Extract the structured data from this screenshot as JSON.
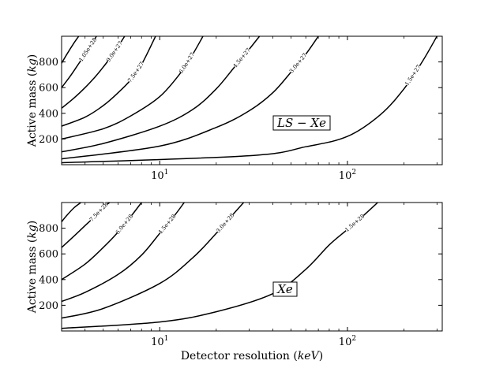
{
  "chart_data": [
    {
      "type": "line",
      "chart_kind": "contour",
      "title": "",
      "xlabel": "",
      "ylabel": "Active mass (kg)",
      "xscale": "log",
      "xlim": [
        3,
        320
      ],
      "ylim": [
        0,
        1000
      ],
      "xticks": [
        10,
        100
      ],
      "xtick_labels": [
        "10",
        "100"
      ],
      "yticks": [
        200,
        400,
        600,
        800
      ],
      "ytick_labels": [
        "200",
        "400",
        "600",
        "800"
      ],
      "annotation": "LS − Xe",
      "grid": false,
      "series": [
        {
          "name": "1.5e+27",
          "x": [
            3,
            30,
            60,
            100,
            150,
            200,
            250,
            300
          ],
          "y": [
            15,
            70,
            140,
            220,
            390,
            590,
            800,
            1000
          ]
        },
        {
          "name": "3.0e+27",
          "x": [
            3,
            10,
            20,
            30,
            40,
            50,
            60,
            70
          ],
          "y": [
            45,
            145,
            290,
            420,
            560,
            720,
            860,
            1000
          ]
        },
        {
          "name": "4.5e+27",
          "x": [
            3,
            5,
            10,
            15,
            20,
            25,
            30,
            34
          ],
          "y": [
            100,
            165,
            300,
            430,
            590,
            760,
            900,
            1000
          ]
        },
        {
          "name": "6.0e+27",
          "x": [
            3,
            5,
            7,
            10,
            13,
            15,
            17
          ],
          "y": [
            200,
            280,
            380,
            530,
            720,
            860,
            1000
          ]
        },
        {
          "name": "7.5e+27",
          "x": [
            3,
            4,
            5,
            6,
            7,
            8,
            9.5
          ],
          "y": [
            300,
            370,
            460,
            560,
            660,
            780,
            1000
          ]
        },
        {
          "name": "9.0e+27",
          "x": [
            3,
            3.5,
            4,
            4.5,
            5,
            5.5,
            6,
            6.5
          ],
          "y": [
            440,
            520,
            600,
            680,
            760,
            840,
            920,
            1000
          ]
        },
        {
          "name": "1.05e+28",
          "x": [
            3,
            3.3,
            3.6,
            4,
            4.3,
            4.6
          ],
          "y": [
            600,
            680,
            760,
            860,
            930,
            1000
          ]
        },
        {
          "name": "",
          "x": [
            3,
            3.2,
            3.5,
            3.7
          ],
          "y": [
            790,
            860,
            950,
            1000
          ]
        }
      ]
    },
    {
      "type": "line",
      "chart_kind": "contour",
      "title": "",
      "xlabel": "Detector resolution (keV)",
      "ylabel": "Active mass (kg)",
      "xscale": "log",
      "xlim": [
        3,
        320
      ],
      "ylim": [
        0,
        1000
      ],
      "xticks": [
        10,
        100
      ],
      "xtick_labels": [
        "10",
        "100"
      ],
      "yticks": [
        200,
        400,
        600,
        800
      ],
      "ytick_labels": [
        "200",
        "400",
        "600",
        "800"
      ],
      "annotation": "Xe",
      "grid": false,
      "series": [
        {
          "name": "1.5e+28",
          "x": [
            3,
            10,
            20,
            40,
            60,
            80,
            100,
            120,
            145
          ],
          "y": [
            20,
            70,
            150,
            290,
            480,
            670,
            790,
            890,
            1000
          ]
        },
        {
          "name": "3.0e+28",
          "x": [
            3,
            5,
            10,
            15,
            20,
            25,
            28
          ],
          "y": [
            100,
            175,
            370,
            570,
            760,
            920,
            1000
          ]
        },
        {
          "name": "4.5e+28",
          "x": [
            3,
            4,
            6,
            8,
            10,
            12,
            13.5
          ],
          "y": [
            230,
            300,
            440,
            590,
            760,
            900,
            1000
          ]
        },
        {
          "name": "6.0e+28",
          "x": [
            3,
            4,
            5,
            6,
            7,
            8
          ],
          "y": [
            400,
            520,
            650,
            770,
            890,
            1000
          ]
        },
        {
          "name": "7.5e+28",
          "x": [
            3,
            3.5,
            4,
            4.5,
            5,
            5.4
          ],
          "y": [
            650,
            740,
            820,
            890,
            960,
            1000
          ]
        },
        {
          "name": "",
          "x": [
            3,
            3.2,
            3.5,
            3.8
          ],
          "y": [
            850,
            900,
            960,
            1000
          ]
        }
      ]
    }
  ]
}
